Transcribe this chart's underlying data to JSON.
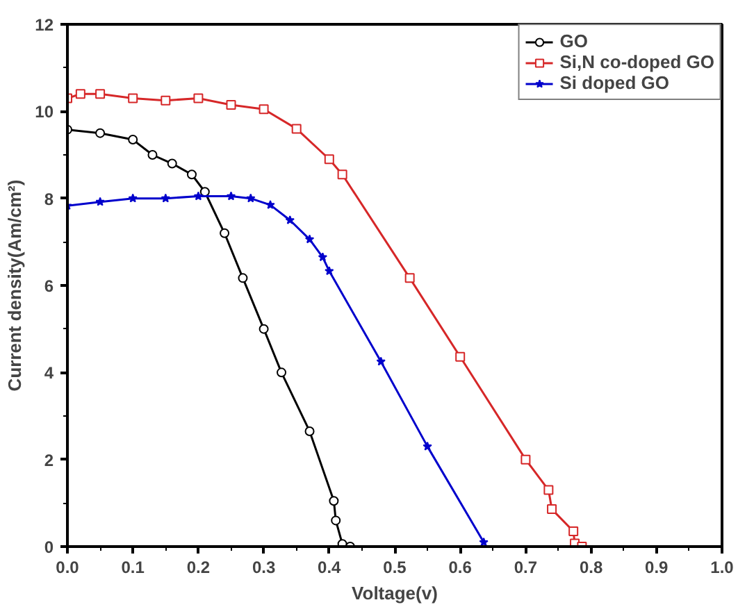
{
  "chart_data": {
    "type": "line",
    "xlabel": "Voltage(v)",
    "ylabel": "Current density(Am/cm²)",
    "xlim": [
      0,
      1.0
    ],
    "ylim": [
      0,
      12
    ],
    "xticks": [
      {
        "value": 0,
        "label": "0.0"
      },
      {
        "value": 0.05,
        "label": null
      },
      {
        "value": 0.1,
        "label": "0.1"
      },
      {
        "value": 0.15,
        "label": null
      },
      {
        "value": 0.2,
        "label": "0.2"
      },
      {
        "value": 0.25,
        "label": null
      },
      {
        "value": 0.3,
        "label": "0.3"
      },
      {
        "value": 0.35,
        "label": null
      },
      {
        "value": 0.4,
        "label": "0.4"
      },
      {
        "value": 0.45,
        "label": null
      },
      {
        "value": 0.5,
        "label": "0.5"
      },
      {
        "value": 0.55,
        "label": null
      },
      {
        "value": 0.6,
        "label": "0.6"
      },
      {
        "value": 0.65,
        "label": null
      },
      {
        "value": 0.7,
        "label": "0.7"
      },
      {
        "value": 0.75,
        "label": null
      },
      {
        "value": 0.8,
        "label": "0.8"
      },
      {
        "value": 0.85,
        "label": null
      },
      {
        "value": 0.9,
        "label": "0.9"
      },
      {
        "value": 0.95,
        "label": null
      },
      {
        "value": 1.0,
        "label": "1.0"
      }
    ],
    "yticks": [
      0,
      {
        "value": 1,
        "label": null
      },
      2,
      {
        "value": 3,
        "label": null
      },
      4,
      {
        "value": 5,
        "label": null
      },
      6,
      {
        "value": 7,
        "label": null
      },
      8,
      {
        "value": 9,
        "label": null
      },
      10,
      {
        "value": 11,
        "label": null
      },
      12
    ],
    "grid": false,
    "legend": "top right",
    "line_style": "solid",
    "series": [
      {
        "name": "GO",
        "color": "#000000",
        "marker": "circle",
        "x": [
          0,
          0.05,
          0.1,
          0.13,
          0.16,
          0.19,
          0.21,
          0.24,
          0.268,
          0.3,
          0.327,
          0.37,
          0.407,
          0.41,
          0.42,
          0.432
        ],
        "values": [
          9.58,
          9.5,
          9.35,
          9.0,
          8.8,
          8.55,
          8.15,
          7.2,
          6.17,
          5.0,
          4.0,
          2.65,
          1.05,
          0.6,
          0.06,
          0
        ]
      },
      {
        "name": "Si,N co-doped GO",
        "color": "#d62728",
        "marker": "square",
        "x": [
          0,
          0.02,
          0.05,
          0.1,
          0.15,
          0.2,
          0.25,
          0.3,
          0.35,
          0.4,
          0.42,
          0.523,
          0.6,
          0.7,
          0.735,
          0.74,
          0.773,
          0.775,
          0.786
        ],
        "values": [
          10.3,
          10.4,
          10.4,
          10.3,
          10.25,
          10.3,
          10.15,
          10.05,
          9.6,
          8.9,
          8.55,
          6.17,
          4.36,
          2.0,
          1.3,
          0.86,
          0.35,
          0.07,
          0
        ]
      },
      {
        "name": "Si doped GO",
        "color": "#0000cc",
        "marker": "star",
        "x": [
          0,
          0.05,
          0.1,
          0.15,
          0.2,
          0.25,
          0.28,
          0.31,
          0.34,
          0.37,
          0.39,
          0.4,
          0.479,
          0.55,
          0.636
        ],
        "values": [
          7.83,
          7.92,
          8.0,
          8.0,
          8.05,
          8.05,
          8.0,
          7.85,
          7.5,
          7.06,
          6.65,
          6.33,
          4.25,
          2.3,
          0.1
        ]
      }
    ]
  }
}
